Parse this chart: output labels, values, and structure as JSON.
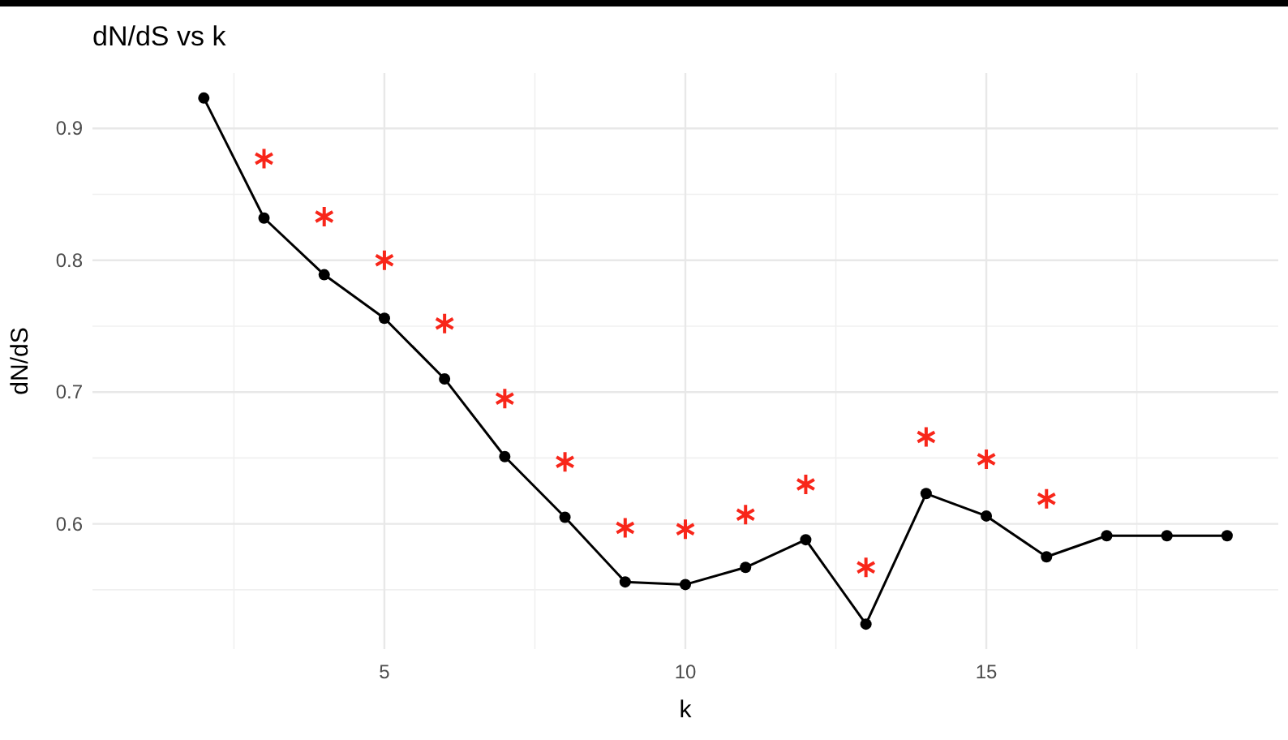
{
  "chart_data": {
    "type": "line",
    "title": "dN/dS vs k",
    "xlabel": "k",
    "ylabel": "dN/dS",
    "x": [
      2,
      3,
      4,
      5,
      6,
      7,
      8,
      9,
      10,
      11,
      12,
      13,
      14,
      15,
      16,
      17,
      18,
      19
    ],
    "series": [
      {
        "color": "#000000",
        "values": [
          0.923,
          0.832,
          0.789,
          0.756,
          0.71,
          0.651,
          0.605,
          0.556,
          0.554,
          0.567,
          0.588,
          0.524,
          0.623,
          0.606,
          0.575,
          0.591,
          0.591,
          0.591
        ]
      },
      {
        "type": "scatter",
        "color": "#f8261a",
        "marker": "cross",
        "x": [
          3,
          4,
          5,
          6,
          7,
          8,
          9,
          10,
          11,
          12,
          13,
          14,
          15,
          16
        ],
        "values": [
          0.877,
          0.833,
          0.8,
          0.752,
          0.695,
          0.647,
          0.597,
          0.596,
          0.607,
          0.63,
          0.567,
          0.666,
          0.649,
          0.619
        ]
      }
    ],
    "xlim": [
      0.15,
      19.85
    ],
    "ylim": [
      0.505,
      0.942
    ],
    "xticks": [
      5,
      10,
      15
    ],
    "yticks": [
      0.6,
      0.7,
      0.8,
      0.9
    ],
    "grid": true,
    "marker": "circle",
    "line_style": "solid"
  }
}
